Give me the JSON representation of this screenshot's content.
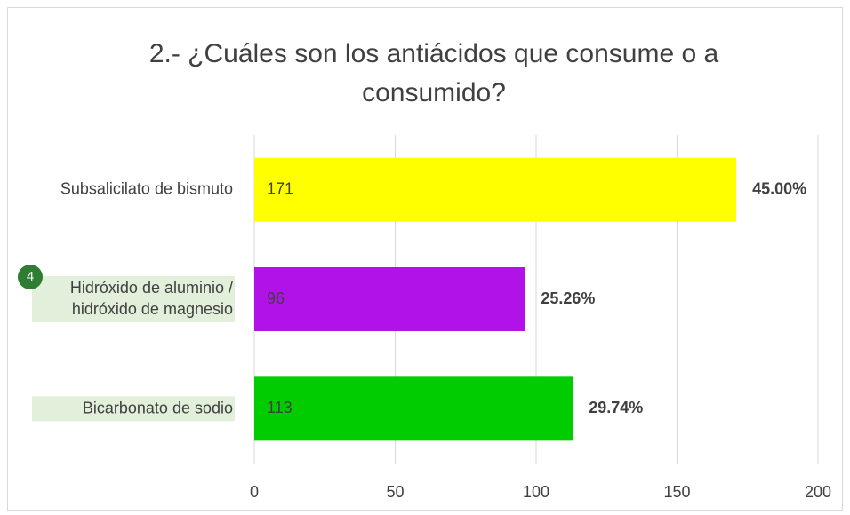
{
  "chart_data": {
    "type": "bar",
    "orientation": "horizontal",
    "title": "2.- ¿Cuáles son los antiácidos que consume o a consumido?",
    "categories": [
      "Subsalicilato de bismuto",
      "Hidróxido de aluminio / hidróxido de magnesio",
      "Bicarbonato de sodio"
    ],
    "values": [
      171,
      96,
      113
    ],
    "colors": [
      "#ffff00",
      "#b012e8",
      "#00cc00"
    ],
    "percentages": [
      45.0,
      25.26,
      29.74
    ],
    "percentage_labels": [
      "45.00%",
      "25.26%",
      "29.74%"
    ],
    "xlim": [
      0,
      200
    ],
    "xticks": [
      0,
      50,
      100,
      150,
      200
    ],
    "grid": true,
    "badge": "4"
  }
}
